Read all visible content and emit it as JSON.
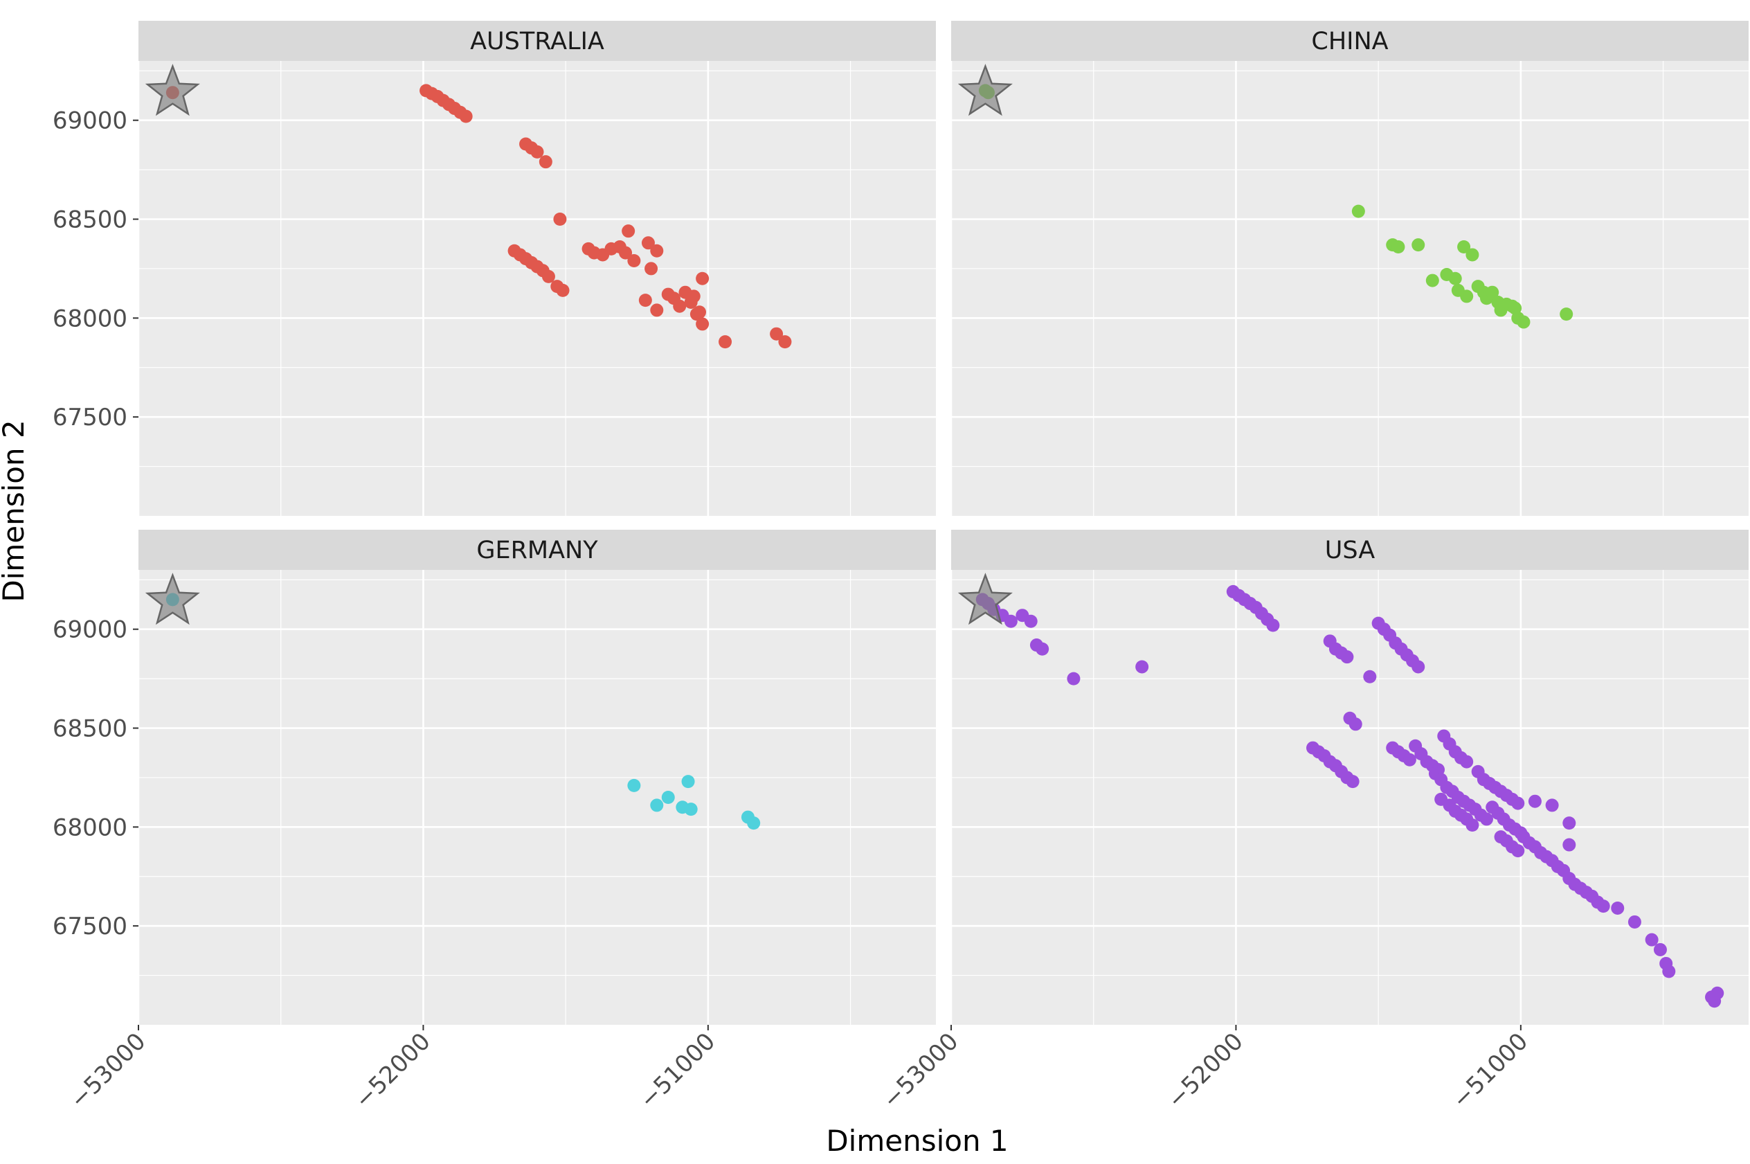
{
  "chart_data": {
    "type": "scatter",
    "facets": [
      "AUSTRALIA",
      "CHINA",
      "GERMANY",
      "USA"
    ],
    "xlabel": "Dimension 1",
    "ylabel": "Dimension 2",
    "xlim": [
      -53000,
      -50200
    ],
    "ylim": [
      67000,
      69300
    ],
    "x_ticks": [
      -53000,
      -52000,
      -51000
    ],
    "x_tick_labels": [
      "−53000",
      "−52000",
      "−51000"
    ],
    "y_ticks": [
      67500,
      68000,
      68500,
      69000
    ],
    "y_tick_labels": [
      "67500",
      "68000",
      "68500",
      "69000"
    ],
    "grid": true,
    "reference_marker": {
      "shape": "star",
      "x": -52880,
      "y": 69140
    },
    "series": [
      {
        "facet": "AUSTRALIA",
        "color": "#e0584d",
        "points": [
          [
            -52880,
            69140
          ],
          [
            -51990,
            69150
          ],
          [
            -51970,
            69135
          ],
          [
            -51950,
            69120
          ],
          [
            -51930,
            69100
          ],
          [
            -51910,
            69080
          ],
          [
            -51890,
            69060
          ],
          [
            -51870,
            69040
          ],
          [
            -51850,
            69020
          ],
          [
            -51640,
            68880
          ],
          [
            -51620,
            68860
          ],
          [
            -51600,
            68840
          ],
          [
            -51570,
            68790
          ],
          [
            -51520,
            68500
          ],
          [
            -51680,
            68340
          ],
          [
            -51660,
            68320
          ],
          [
            -51640,
            68300
          ],
          [
            -51620,
            68280
          ],
          [
            -51600,
            68260
          ],
          [
            -51580,
            68240
          ],
          [
            -51560,
            68210
          ],
          [
            -51530,
            68160
          ],
          [
            -51510,
            68140
          ],
          [
            -51420,
            68350
          ],
          [
            -51400,
            68330
          ],
          [
            -51370,
            68320
          ],
          [
            -51340,
            68350
          ],
          [
            -51310,
            68360
          ],
          [
            -51290,
            68330
          ],
          [
            -51260,
            68290
          ],
          [
            -51280,
            68440
          ],
          [
            -51210,
            68380
          ],
          [
            -51180,
            68340
          ],
          [
            -51200,
            68250
          ],
          [
            -51220,
            68090
          ],
          [
            -51180,
            68040
          ],
          [
            -51140,
            68120
          ],
          [
            -51120,
            68100
          ],
          [
            -51100,
            68060
          ],
          [
            -51080,
            68130
          ],
          [
            -51060,
            68080
          ],
          [
            -51040,
            68020
          ],
          [
            -51020,
            67970
          ],
          [
            -51050,
            68110
          ],
          [
            -51030,
            68030
          ],
          [
            -51020,
            68200
          ],
          [
            -50940,
            67880
          ],
          [
            -50760,
            67920
          ],
          [
            -50730,
            67880
          ]
        ]
      },
      {
        "facet": "CHINA",
        "color": "#7fd14a",
        "points": [
          [
            -52880,
            69150
          ],
          [
            -52870,
            69140
          ],
          [
            -51570,
            68540
          ],
          [
            -51450,
            68370
          ],
          [
            -51430,
            68360
          ],
          [
            -51360,
            68370
          ],
          [
            -51310,
            68190
          ],
          [
            -51260,
            68220
          ],
          [
            -51230,
            68200
          ],
          [
            -51220,
            68140
          ],
          [
            -51200,
            68360
          ],
          [
            -51170,
            68320
          ],
          [
            -51190,
            68110
          ],
          [
            -51150,
            68160
          ],
          [
            -51130,
            68130
          ],
          [
            -51120,
            68100
          ],
          [
            -51100,
            68130
          ],
          [
            -51080,
            68080
          ],
          [
            -51070,
            68040
          ],
          [
            -51050,
            68070
          ],
          [
            -51030,
            68060
          ],
          [
            -51020,
            68050
          ],
          [
            -51010,
            68000
          ],
          [
            -50990,
            67980
          ],
          [
            -50840,
            68020
          ]
        ]
      },
      {
        "facet": "GERMANY",
        "color": "#4fd1dc",
        "points": [
          [
            -52880,
            69150
          ],
          [
            -51260,
            68210
          ],
          [
            -51180,
            68110
          ],
          [
            -51140,
            68150
          ],
          [
            -51090,
            68100
          ],
          [
            -51070,
            68230
          ],
          [
            -51060,
            68090
          ],
          [
            -50860,
            68050
          ],
          [
            -50840,
            68020
          ]
        ]
      },
      {
        "facet": "USA",
        "color": "#9b4fdc",
        "points": [
          [
            -52890,
            69150
          ],
          [
            -52870,
            69130
          ],
          [
            -52850,
            69100
          ],
          [
            -52820,
            69070
          ],
          [
            -52790,
            69040
          ],
          [
            -52750,
            69070
          ],
          [
            -52720,
            69040
          ],
          [
            -52700,
            68920
          ],
          [
            -52680,
            68900
          ],
          [
            -52570,
            68750
          ],
          [
            -52330,
            68810
          ],
          [
            -52010,
            69190
          ],
          [
            -51990,
            69170
          ],
          [
            -51970,
            69150
          ],
          [
            -51950,
            69130
          ],
          [
            -51930,
            69110
          ],
          [
            -51910,
            69080
          ],
          [
            -51890,
            69050
          ],
          [
            -51870,
            69020
          ],
          [
            -51670,
            68940
          ],
          [
            -51650,
            68900
          ],
          [
            -51630,
            68880
          ],
          [
            -51610,
            68860
          ],
          [
            -51530,
            68760
          ],
          [
            -51500,
            69030
          ],
          [
            -51480,
            69000
          ],
          [
            -51460,
            68970
          ],
          [
            -51440,
            68930
          ],
          [
            -51420,
            68900
          ],
          [
            -51400,
            68870
          ],
          [
            -51380,
            68840
          ],
          [
            -51360,
            68810
          ],
          [
            -51600,
            68550
          ],
          [
            -51580,
            68520
          ],
          [
            -51730,
            68400
          ],
          [
            -51710,
            68380
          ],
          [
            -51690,
            68360
          ],
          [
            -51670,
            68330
          ],
          [
            -51650,
            68310
          ],
          [
            -51630,
            68280
          ],
          [
            -51610,
            68250
          ],
          [
            -51590,
            68230
          ],
          [
            -51450,
            68400
          ],
          [
            -51430,
            68380
          ],
          [
            -51410,
            68360
          ],
          [
            -51390,
            68340
          ],
          [
            -51370,
            68410
          ],
          [
            -51350,
            68370
          ],
          [
            -51330,
            68330
          ],
          [
            -51310,
            68310
          ],
          [
            -51290,
            68290
          ],
          [
            -51270,
            68460
          ],
          [
            -51250,
            68420
          ],
          [
            -51230,
            68380
          ],
          [
            -51210,
            68350
          ],
          [
            -51190,
            68330
          ],
          [
            -51300,
            68270
          ],
          [
            -51280,
            68240
          ],
          [
            -51260,
            68200
          ],
          [
            -51240,
            68180
          ],
          [
            -51220,
            68150
          ],
          [
            -51200,
            68130
          ],
          [
            -51180,
            68110
          ],
          [
            -51160,
            68090
          ],
          [
            -51140,
            68060
          ],
          [
            -51120,
            68040
          ],
          [
            -51280,
            68140
          ],
          [
            -51250,
            68110
          ],
          [
            -51230,
            68080
          ],
          [
            -51210,
            68060
          ],
          [
            -51190,
            68040
          ],
          [
            -51170,
            68010
          ],
          [
            -51150,
            68280
          ],
          [
            -51130,
            68240
          ],
          [
            -51110,
            68220
          ],
          [
            -51090,
            68200
          ],
          [
            -51070,
            68180
          ],
          [
            -51050,
            68160
          ],
          [
            -51030,
            68140
          ],
          [
            -51010,
            68120
          ],
          [
            -51100,
            68100
          ],
          [
            -51080,
            68070
          ],
          [
            -51060,
            68040
          ],
          [
            -51040,
            68010
          ],
          [
            -51020,
            67990
          ],
          [
            -51000,
            67970
          ],
          [
            -51070,
            67950
          ],
          [
            -51050,
            67930
          ],
          [
            -51030,
            67900
          ],
          [
            -51010,
            67880
          ],
          [
            -50990,
            67950
          ],
          [
            -50970,
            67920
          ],
          [
            -50950,
            67900
          ],
          [
            -50930,
            67870
          ],
          [
            -50910,
            67850
          ],
          [
            -50890,
            67830
          ],
          [
            -50870,
            67800
          ],
          [
            -50850,
            67780
          ],
          [
            -50950,
            68130
          ],
          [
            -50890,
            68110
          ],
          [
            -50830,
            68020
          ],
          [
            -50830,
            67910
          ],
          [
            -50830,
            67740
          ],
          [
            -50810,
            67710
          ],
          [
            -50790,
            67690
          ],
          [
            -50770,
            67670
          ],
          [
            -50750,
            67650
          ],
          [
            -50730,
            67620
          ],
          [
            -50710,
            67600
          ],
          [
            -50660,
            67590
          ],
          [
            -50600,
            67520
          ],
          [
            -50540,
            67430
          ],
          [
            -50510,
            67380
          ],
          [
            -50490,
            67310
          ],
          [
            -50480,
            67270
          ],
          [
            -50330,
            67140
          ],
          [
            -50320,
            67120
          ],
          [
            -50310,
            67160
          ]
        ]
      }
    ]
  }
}
